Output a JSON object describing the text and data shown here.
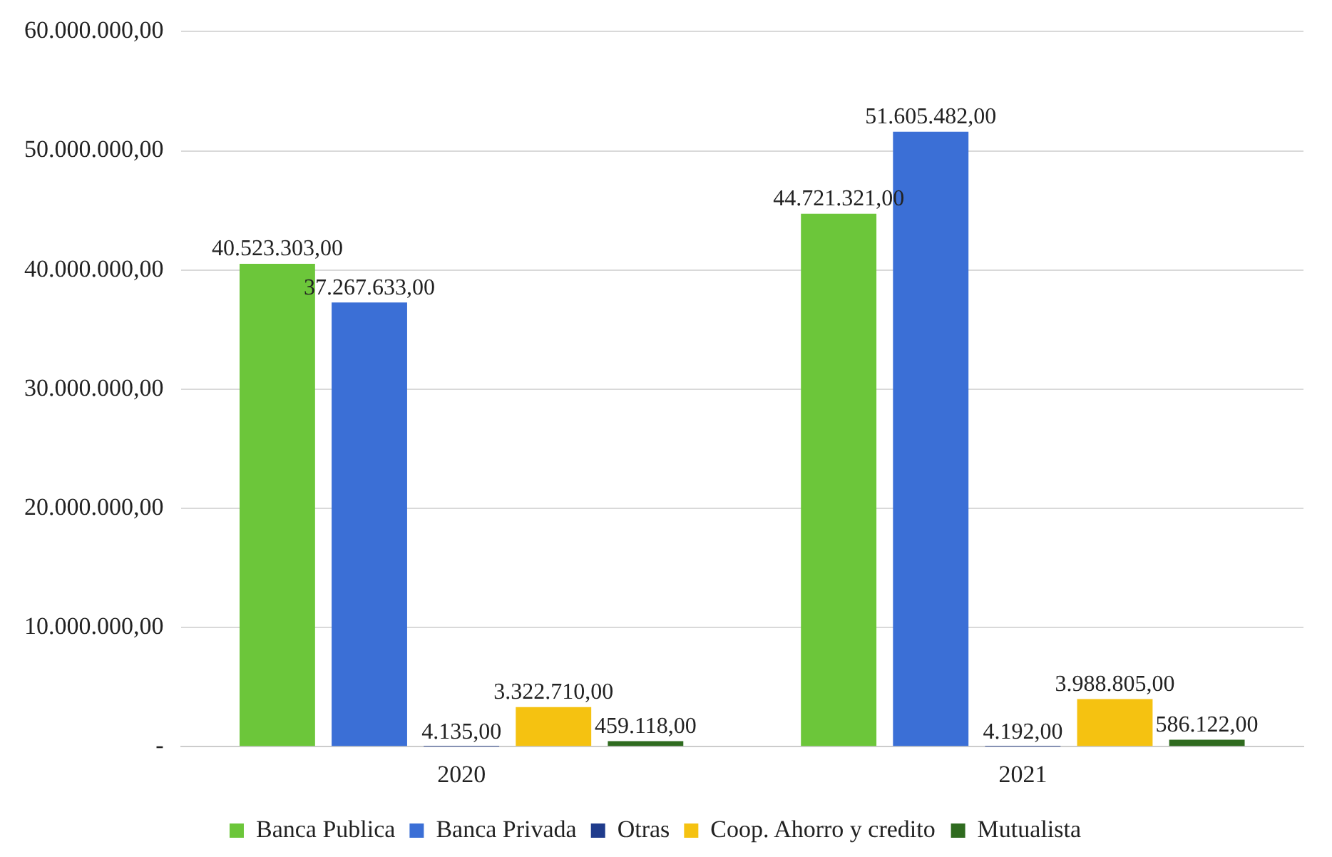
{
  "chart_data": {
    "type": "bar",
    "categories": [
      "2020",
      "2021"
    ],
    "series": [
      {
        "name": "Banca Publica",
        "color": "#6cc63a",
        "values": [
          40523303,
          44721321
        ],
        "value_labels": [
          "40.523.303,00",
          "44.721.321,00"
        ]
      },
      {
        "name": "Banca Privada",
        "color": "#3b6fd6",
        "values": [
          37267633,
          51605482
        ],
        "value_labels": [
          "37.267.633,00",
          "51.605.482,00"
        ]
      },
      {
        "name": "Otras",
        "color": "#1f3b8c",
        "values": [
          4135,
          4192
        ],
        "value_labels": [
          "4.135,00",
          "4.192,00"
        ]
      },
      {
        "name": "Coop. Ahorro y credito",
        "color": "#f5c211",
        "values": [
          3322710,
          3988805
        ],
        "value_labels": [
          "3.322.710,00",
          "3.988.805,00"
        ]
      },
      {
        "name": "Mutualista",
        "color": "#2f6b1f",
        "values": [
          459118,
          586122
        ],
        "value_labels": [
          "459.118,00",
          "586.122,00"
        ]
      }
    ],
    "ylim": [
      0,
      60000000
    ],
    "yticks": [
      {
        "value": 0,
        "label": "-"
      },
      {
        "value": 10000000,
        "label": "10.000.000,00"
      },
      {
        "value": 20000000,
        "label": "20.000.000,00"
      },
      {
        "value": 30000000,
        "label": "30.000.000,00"
      },
      {
        "value": 40000000,
        "label": "40.000.000,00"
      },
      {
        "value": 50000000,
        "label": "50.000.000,00"
      },
      {
        "value": 60000000,
        "label": "60.000.000,00"
      }
    ],
    "grid": "y",
    "legend": "bottom"
  }
}
